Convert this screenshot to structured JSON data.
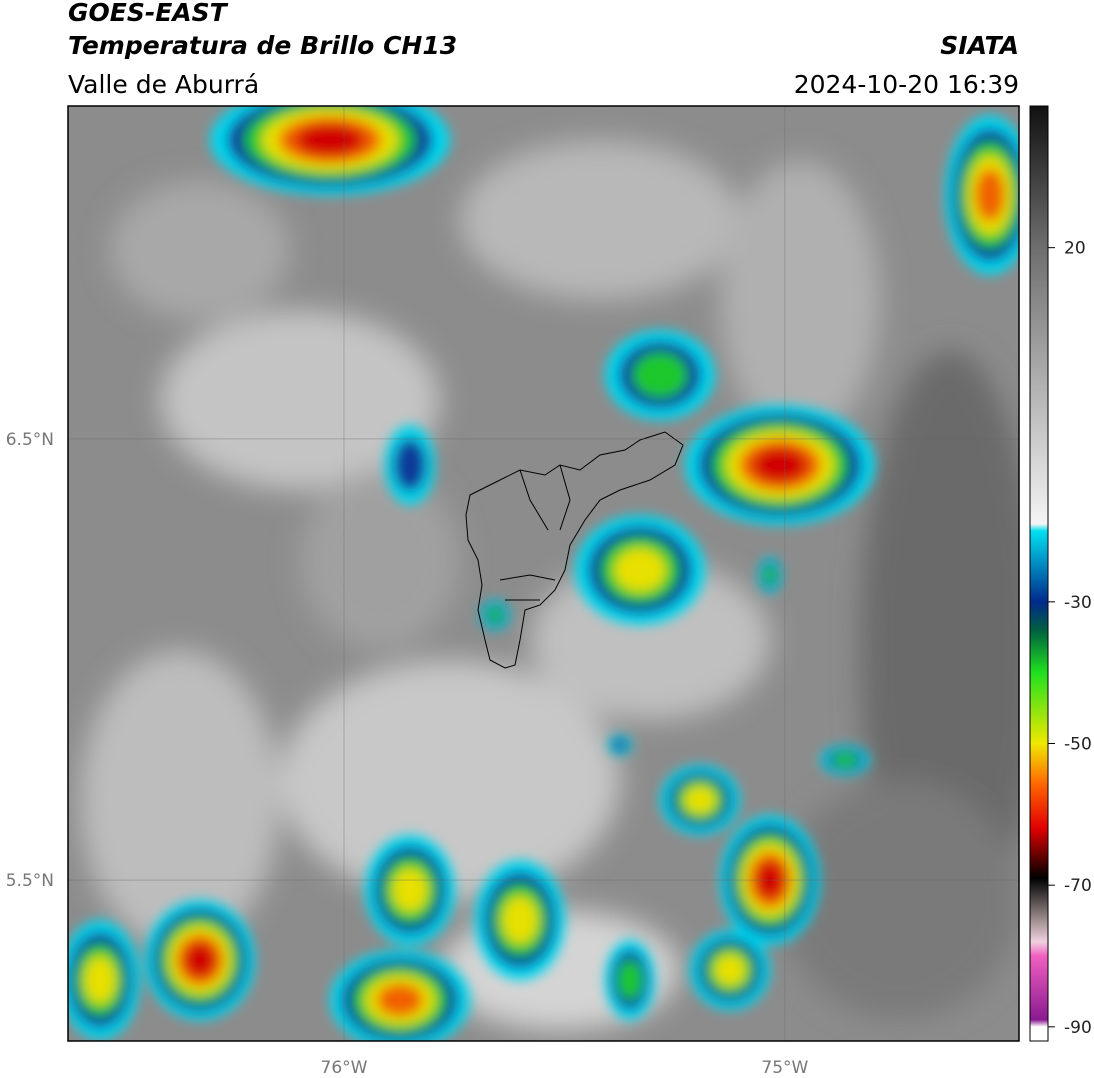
{
  "header": {
    "title": "GOES-EAST",
    "subtitle": "Temperatura de Brillo CH13",
    "region": "Valle de Aburrá",
    "source": "SIATA",
    "datetime": "2024-10-20 16:39"
  },
  "map": {
    "xlim": [
      -76.626,
      -74.469
    ],
    "ylim": [
      5.135,
      7.255
    ],
    "xticks": [
      {
        "value": -76,
        "label": "76°W"
      },
      {
        "value": -75,
        "label": "75°W"
      }
    ],
    "yticks": [
      {
        "value": 6.5,
        "label": "6.5°N"
      },
      {
        "value": 5.5,
        "label": "5.5°N"
      }
    ],
    "grid": true
  },
  "colorbar": {
    "clim": [
      -92,
      40
    ],
    "ticks": [
      20,
      -30,
      -50,
      -70,
      -90
    ],
    "colormap": [
      {
        "value": 40,
        "color": "#111111"
      },
      {
        "value": 20,
        "color": "#6e6e6e"
      },
      {
        "value": -19,
        "color": "#f4f4f4"
      },
      {
        "value": -20,
        "color": "#00e0f0"
      },
      {
        "value": -30,
        "color": "#002a8c"
      },
      {
        "value": -34,
        "color": "#006040"
      },
      {
        "value": -40,
        "color": "#20e020"
      },
      {
        "value": -50,
        "color": "#f0e800"
      },
      {
        "value": -56,
        "color": "#ff6000"
      },
      {
        "value": -62,
        "color": "#e00000"
      },
      {
        "value": -67,
        "color": "#400000"
      },
      {
        "value": -69,
        "color": "#000000"
      },
      {
        "value": -75,
        "color": "#a09090"
      },
      {
        "value": -78,
        "color": "#f0d0e0"
      },
      {
        "value": -80,
        "color": "#f060c0"
      },
      {
        "value": -89,
        "color": "#8a1a90"
      },
      {
        "value": -90,
        "color": "#ffffff"
      },
      {
        "value": -92,
        "color": "#ffffff"
      }
    ]
  }
}
